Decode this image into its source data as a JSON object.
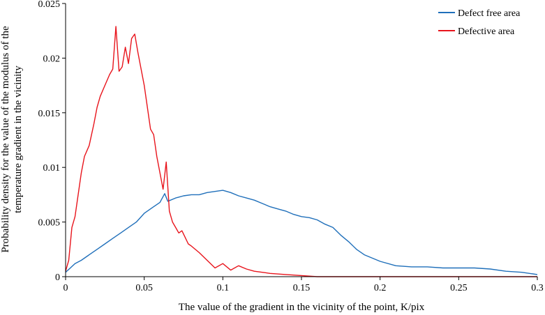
{
  "chart_data": {
    "type": "line",
    "title": "",
    "xlabel": "The value of the gradient in the vicinity of the point, K/pix",
    "ylabel": "Probability density for the value of the modulus of the temperature gradient in the vicinity",
    "ylabel_lines": [
      "Probability density for the value of the modulus of the",
      "temperature gradient in the vicinity"
    ],
    "xlim": [
      0,
      0.3
    ],
    "ylim": [
      0,
      0.025
    ],
    "x_ticks": [
      0,
      0.05,
      0.1,
      0.15,
      0.2,
      0.25,
      0.3
    ],
    "x_tick_labels": [
      "0",
      "0.05",
      "0.1",
      "0.15",
      "0.2",
      "0.25",
      "0.3"
    ],
    "y_ticks": [
      0,
      0.005,
      0.01,
      0.015,
      0.02,
      0.025
    ],
    "y_tick_labels": [
      "0",
      "0.005",
      "0.01",
      "0.015",
      "0.02",
      "0.025"
    ],
    "grid": false,
    "legend_position": "top-right",
    "series": [
      {
        "name": "Defect free area",
        "color": "#1f6fba",
        "points": [
          [
            0,
            0.0004
          ],
          [
            0.003,
            0.0008
          ],
          [
            0.006,
            0.0012
          ],
          [
            0.01,
            0.0015
          ],
          [
            0.015,
            0.002
          ],
          [
            0.02,
            0.0025
          ],
          [
            0.025,
            0.003
          ],
          [
            0.03,
            0.0035
          ],
          [
            0.035,
            0.004
          ],
          [
            0.04,
            0.0045
          ],
          [
            0.045,
            0.005
          ],
          [
            0.05,
            0.0058
          ],
          [
            0.055,
            0.0063
          ],
          [
            0.06,
            0.0068
          ],
          [
            0.063,
            0.0076
          ],
          [
            0.065,
            0.0069
          ],
          [
            0.07,
            0.0072
          ],
          [
            0.075,
            0.0074
          ],
          [
            0.08,
            0.0075
          ],
          [
            0.085,
            0.0075
          ],
          [
            0.09,
            0.0077
          ],
          [
            0.095,
            0.0078
          ],
          [
            0.1,
            0.0079
          ],
          [
            0.105,
            0.0077
          ],
          [
            0.11,
            0.0074
          ],
          [
            0.115,
            0.0072
          ],
          [
            0.12,
            0.007
          ],
          [
            0.125,
            0.0067
          ],
          [
            0.13,
            0.0064
          ],
          [
            0.135,
            0.0062
          ],
          [
            0.14,
            0.006
          ],
          [
            0.145,
            0.0057
          ],
          [
            0.15,
            0.0055
          ],
          [
            0.155,
            0.0054
          ],
          [
            0.16,
            0.0052
          ],
          [
            0.165,
            0.0048
          ],
          [
            0.17,
            0.0045
          ],
          [
            0.175,
            0.0038
          ],
          [
            0.18,
            0.0032
          ],
          [
            0.185,
            0.0025
          ],
          [
            0.19,
            0.002
          ],
          [
            0.2,
            0.0014
          ],
          [
            0.21,
            0.001
          ],
          [
            0.22,
            0.0009
          ],
          [
            0.23,
            0.0009
          ],
          [
            0.24,
            0.0008
          ],
          [
            0.25,
            0.0008
          ],
          [
            0.26,
            0.0008
          ],
          [
            0.27,
            0.0007
          ],
          [
            0.28,
            0.0005
          ],
          [
            0.29,
            0.0004
          ],
          [
            0.3,
            0.0002
          ]
        ]
      },
      {
        "name": "Defective area",
        "color": "#e8141c",
        "points": [
          [
            0,
            0.0005
          ],
          [
            0.002,
            0.0015
          ],
          [
            0.004,
            0.0045
          ],
          [
            0.006,
            0.0055
          ],
          [
            0.008,
            0.0075
          ],
          [
            0.01,
            0.0095
          ],
          [
            0.012,
            0.011
          ],
          [
            0.015,
            0.012
          ],
          [
            0.018,
            0.014
          ],
          [
            0.02,
            0.0155
          ],
          [
            0.022,
            0.0165
          ],
          [
            0.025,
            0.0175
          ],
          [
            0.028,
            0.0185
          ],
          [
            0.03,
            0.019
          ],
          [
            0.032,
            0.0229
          ],
          [
            0.034,
            0.0188
          ],
          [
            0.036,
            0.0192
          ],
          [
            0.038,
            0.021
          ],
          [
            0.04,
            0.0195
          ],
          [
            0.042,
            0.0218
          ],
          [
            0.044,
            0.0222
          ],
          [
            0.046,
            0.0205
          ],
          [
            0.048,
            0.019
          ],
          [
            0.05,
            0.0175
          ],
          [
            0.052,
            0.0155
          ],
          [
            0.054,
            0.0135
          ],
          [
            0.056,
            0.013
          ],
          [
            0.058,
            0.011
          ],
          [
            0.06,
            0.0095
          ],
          [
            0.062,
            0.008
          ],
          [
            0.064,
            0.0105
          ],
          [
            0.066,
            0.006
          ],
          [
            0.068,
            0.005
          ],
          [
            0.07,
            0.0045
          ],
          [
            0.072,
            0.004
          ],
          [
            0.074,
            0.0042
          ],
          [
            0.076,
            0.0036
          ],
          [
            0.078,
            0.003
          ],
          [
            0.08,
            0.0028
          ],
          [
            0.085,
            0.0022
          ],
          [
            0.09,
            0.0015
          ],
          [
            0.095,
            0.0008
          ],
          [
            0.1,
            0.0012
          ],
          [
            0.105,
            0.0006
          ],
          [
            0.11,
            0.001
          ],
          [
            0.115,
            0.0007
          ],
          [
            0.12,
            0.0005
          ],
          [
            0.125,
            0.0004
          ],
          [
            0.13,
            0.0003
          ],
          [
            0.14,
            0.0002
          ],
          [
            0.15,
            0.0001
          ],
          [
            0.16,
            0.0
          ],
          [
            0.2,
            0.0
          ],
          [
            0.25,
            0.0
          ],
          [
            0.3,
            0.0
          ]
        ]
      }
    ]
  }
}
